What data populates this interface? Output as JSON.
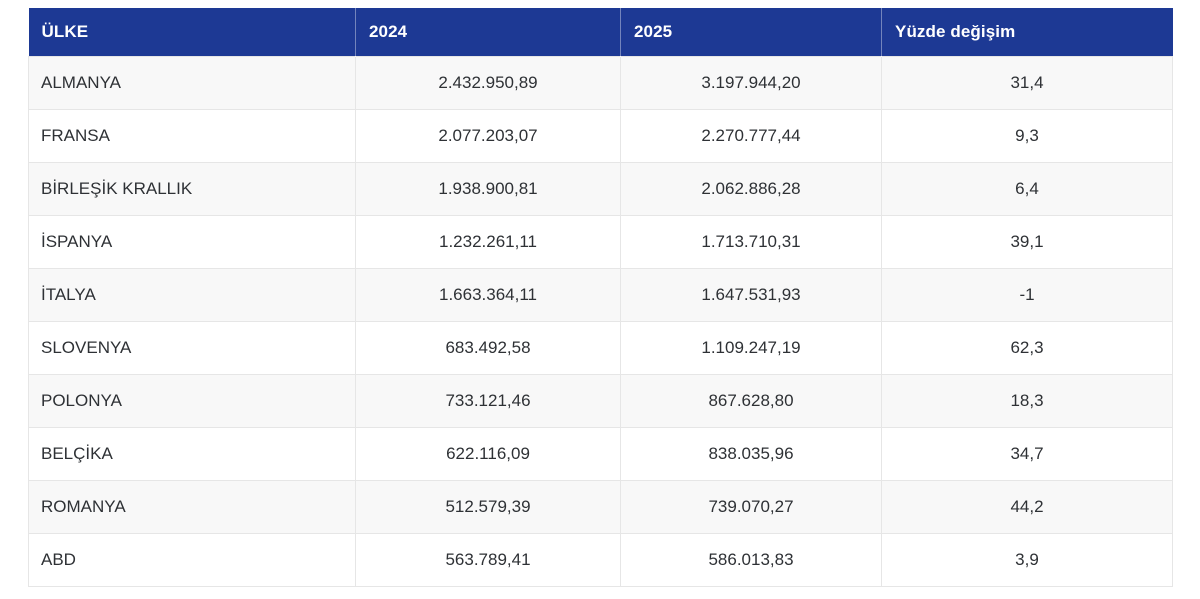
{
  "table": {
    "headers": [
      "ÜLKE",
      "2024",
      "2025",
      "Yüzde değişim"
    ],
    "rows": [
      {
        "country": "ALMANYA",
        "y2024": "2.432.950,89",
        "y2025": "3.197.944,20",
        "change": "31,4"
      },
      {
        "country": "FRANSA",
        "y2024": "2.077.203,07",
        "y2025": "2.270.777,44",
        "change": "9,3"
      },
      {
        "country": "BİRLEŞİK KRALLIK",
        "y2024": "1.938.900,81",
        "y2025": "2.062.886,28",
        "change": "6,4"
      },
      {
        "country": "İSPANYA",
        "y2024": "1.232.261,11",
        "y2025": "1.713.710,31",
        "change": "39,1"
      },
      {
        "country": "İTALYA",
        "y2024": "1.663.364,11",
        "y2025": "1.647.531,93",
        "change": "-1"
      },
      {
        "country": "SLOVENYA",
        "y2024": "683.492,58",
        "y2025": "1.109.247,19",
        "change": "62,3"
      },
      {
        "country": "POLONYA",
        "y2024": "733.121,46",
        "y2025": "867.628,80",
        "change": "18,3"
      },
      {
        "country": "BELÇİKA",
        "y2024": "622.116,09",
        "y2025": "838.035,96",
        "change": "34,7"
      },
      {
        "country": "ROMANYA",
        "y2024": "512.579,39",
        "y2025": "739.070,27",
        "change": "44,2"
      },
      {
        "country": "ABD",
        "y2024": "563.789,41",
        "y2025": "586.013,83",
        "change": "3,9"
      }
    ]
  },
  "colors": {
    "header_bg": "#1d3994",
    "header_text": "#ffffff",
    "row_bg": "#ffffff",
    "row_alt_bg": "#f8f8f8",
    "border": "#e6e6e6",
    "body_text": "#2e3135"
  },
  "chart_data": {
    "type": "table",
    "columns": [
      "ÜLKE",
      "2024",
      "2025",
      "Yüzde değişim"
    ],
    "categories": [
      "ALMANYA",
      "FRANSA",
      "BİRLEŞİK KRALLIK",
      "İSPANYA",
      "İTALYA",
      "SLOVENYA",
      "POLONYA",
      "BELÇİKA",
      "ROMANYA",
      "ABD"
    ],
    "series": [
      {
        "name": "2024",
        "values": [
          2432950.89,
          2077203.07,
          1938900.81,
          1232261.11,
          1663364.11,
          683492.58,
          733121.46,
          622116.09,
          512579.39,
          563789.41
        ]
      },
      {
        "name": "2025",
        "values": [
          3197944.2,
          2270777.44,
          2062886.28,
          1713710.31,
          1647531.93,
          1109247.19,
          867628.8,
          838035.96,
          739070.27,
          586013.83
        ]
      },
      {
        "name": "Yüzde değişim",
        "values": [
          31.4,
          9.3,
          6.4,
          39.1,
          -1,
          62.3,
          18.3,
          34.7,
          44.2,
          3.9
        ]
      }
    ]
  }
}
